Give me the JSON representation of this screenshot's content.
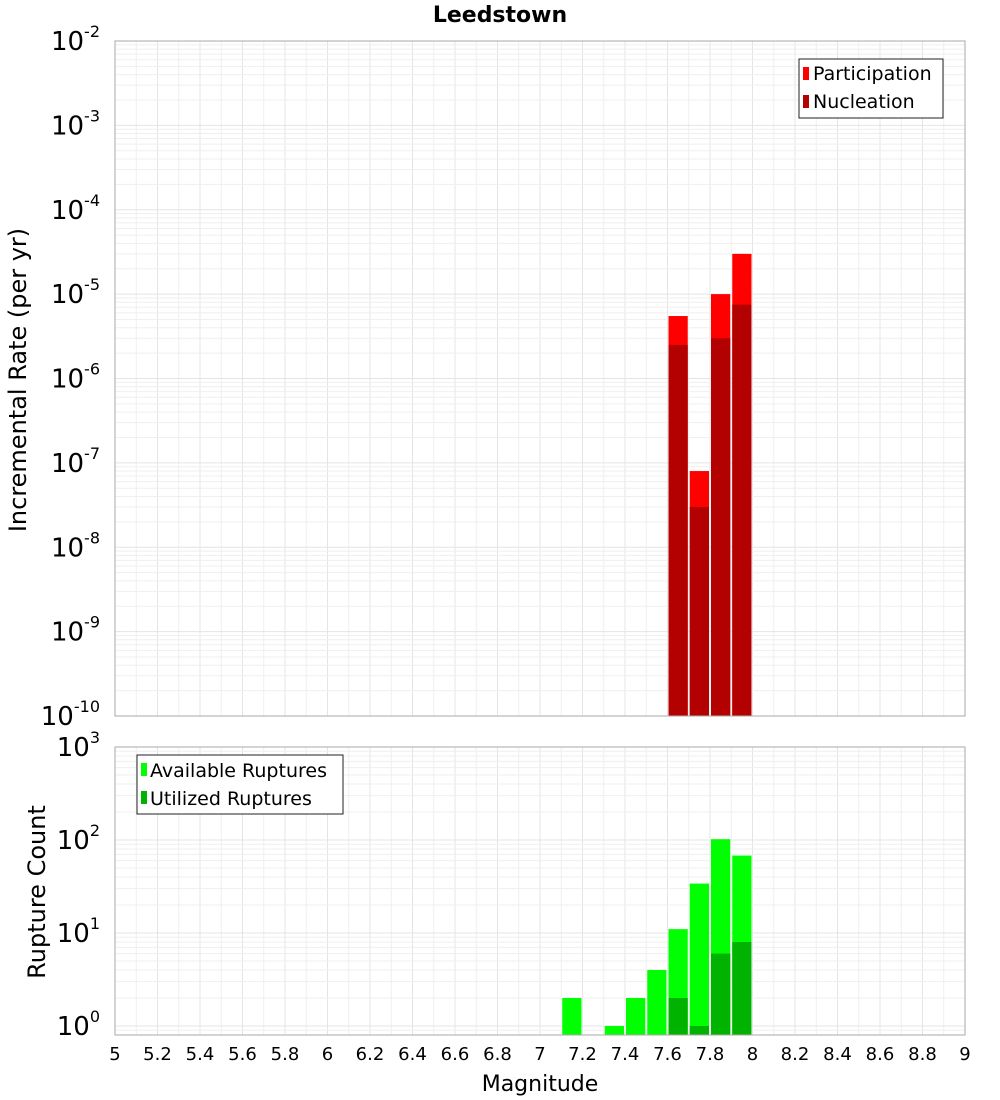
{
  "chart_data": [
    {
      "type": "bar",
      "title": "Leedstown",
      "ylabel": "Incremental Rate (per yr)",
      "xlabel": "",
      "yscale": "log",
      "ylim": [
        1e-10,
        0.01
      ],
      "xlim": [
        5,
        9
      ],
      "bin_width": 0.1,
      "grid": true,
      "legend_position": "top-right",
      "y_ticks": [
        {
          "base": "10",
          "exp": "-10"
        },
        {
          "base": "10",
          "exp": "-9"
        },
        {
          "base": "10",
          "exp": "-8"
        },
        {
          "base": "10",
          "exp": "-7"
        },
        {
          "base": "10",
          "exp": "-6"
        },
        {
          "base": "10",
          "exp": "-5"
        },
        {
          "base": "10",
          "exp": "-4"
        },
        {
          "base": "10",
          "exp": "-3"
        },
        {
          "base": "10",
          "exp": "-2"
        }
      ],
      "series": [
        {
          "name": "Participation",
          "color": "#ff0000",
          "x": [
            7.65,
            7.75,
            7.85,
            7.95
          ],
          "values": [
            5.5e-06,
            8e-08,
            1e-05,
            3e-05
          ]
        },
        {
          "name": "Nucleation",
          "color": "#b30000",
          "x": [
            7.65,
            7.75,
            7.85,
            7.95
          ],
          "values": [
            2.5e-06,
            3e-08,
            3e-06,
            7.5e-06
          ]
        }
      ]
    },
    {
      "type": "bar",
      "title": "",
      "ylabel": "Rupture Count",
      "xlabel": "Magnitude",
      "yscale": "log",
      "ylim": [
        0.8,
        1000
      ],
      "xlim": [
        5,
        9
      ],
      "bin_width": 0.1,
      "grid": true,
      "legend_position": "top-left",
      "y_ticks": [
        {
          "base": "10",
          "exp": "0"
        },
        {
          "base": "10",
          "exp": "1"
        },
        {
          "base": "10",
          "exp": "2"
        },
        {
          "base": "10",
          "exp": "3"
        }
      ],
      "x_ticks": [
        "5",
        "5.2",
        "5.4",
        "5.6",
        "5.8",
        "6",
        "6.2",
        "6.4",
        "6.6",
        "6.8",
        "7",
        "7.2",
        "7.4",
        "7.6",
        "7.8",
        "8",
        "8.2",
        "8.4",
        "8.6",
        "8.8",
        "9"
      ],
      "series": [
        {
          "name": "Available Ruptures",
          "color": "#00ff00",
          "x": [
            7.15,
            7.35,
            7.45,
            7.55,
            7.65,
            7.75,
            7.85,
            7.95
          ],
          "values": [
            2,
            1,
            2,
            4,
            11,
            34,
            102,
            68
          ]
        },
        {
          "name": "Utilized Ruptures",
          "color": "#00b300",
          "x": [
            7.65,
            7.75,
            7.85,
            7.95
          ],
          "values": [
            2,
            1,
            6,
            8
          ]
        }
      ]
    }
  ]
}
